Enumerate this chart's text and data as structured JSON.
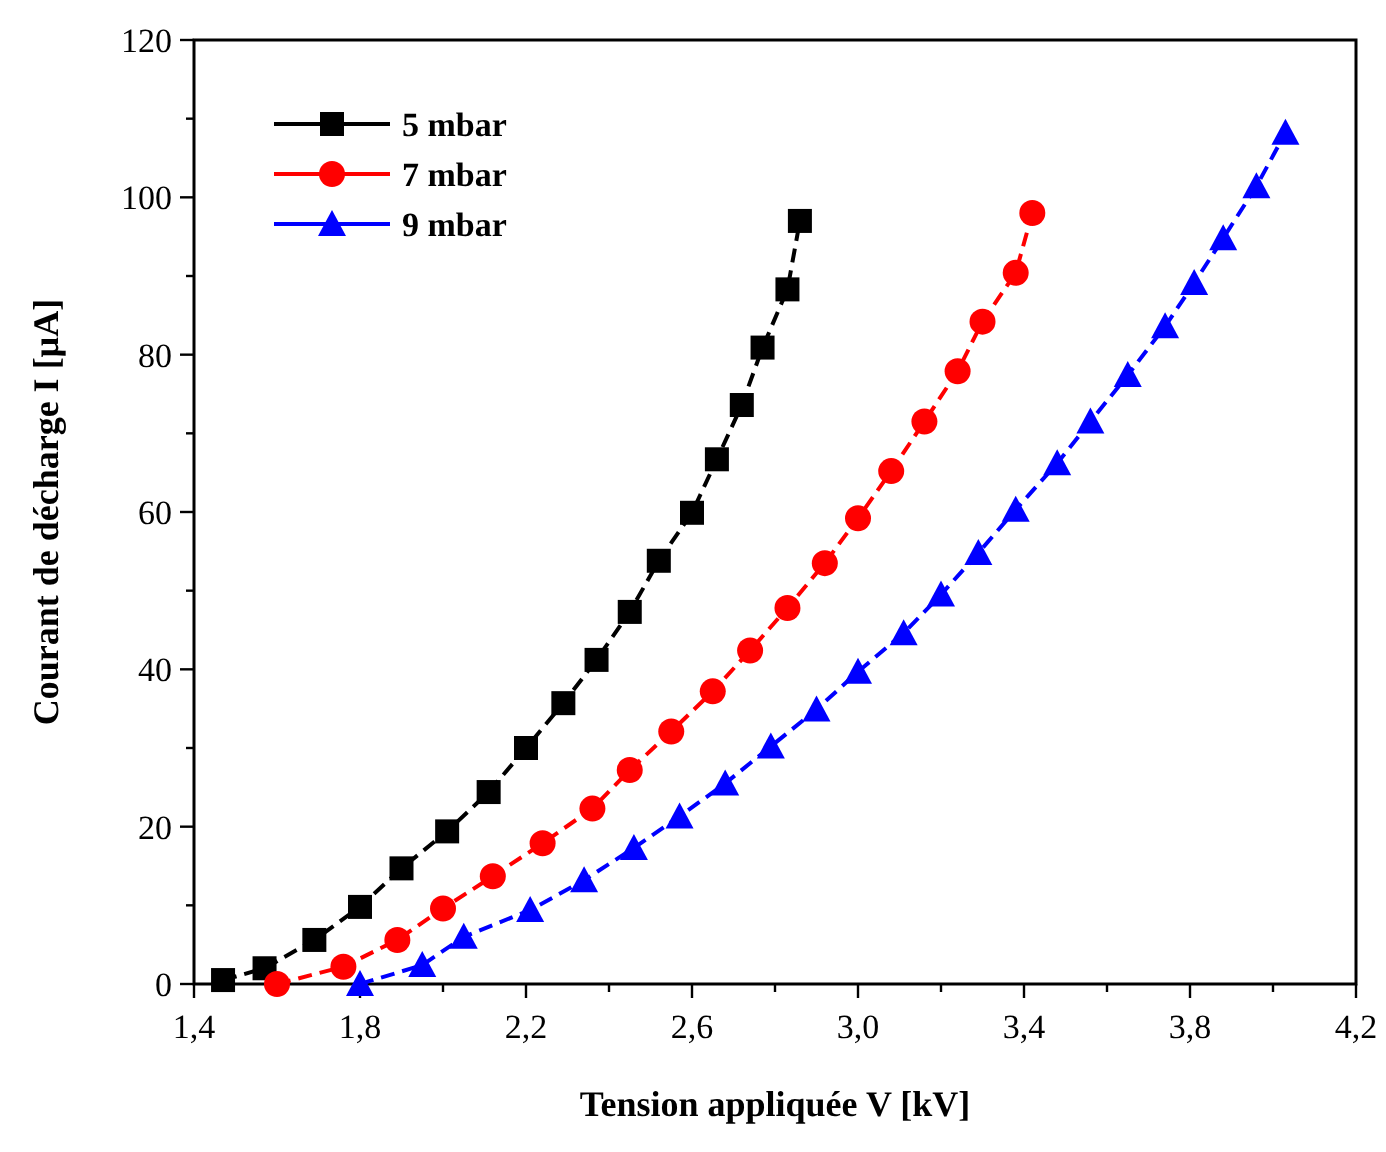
{
  "chart_data": {
    "type": "line",
    "xlabel": "Tension appliquée V [kV]",
    "ylabel": "Courant de décharge I [µA]",
    "xlim": [
      1.4,
      4.2
    ],
    "ylim": [
      0,
      120
    ],
    "xticks": [
      {
        "value": 1.4,
        "label": "1,4"
      },
      {
        "value": 1.6,
        "label": null
      },
      {
        "value": 1.8,
        "label": "1,8"
      },
      {
        "value": 2.0,
        "label": null
      },
      {
        "value": 2.2,
        "label": "2,2"
      },
      {
        "value": 2.4,
        "label": null
      },
      {
        "value": 2.6,
        "label": "2,6"
      },
      {
        "value": 2.8,
        "label": null
      },
      {
        "value": 3.0,
        "label": "3,0"
      },
      {
        "value": 3.2,
        "label": null
      },
      {
        "value": 3.4,
        "label": "3,4"
      },
      {
        "value": 3.6,
        "label": null
      },
      {
        "value": 3.8,
        "label": "3,8"
      },
      {
        "value": 4.0,
        "label": null
      },
      {
        "value": 4.2,
        "label": "4,2"
      }
    ],
    "yticks": [
      0,
      {
        "value": 10,
        "label": null
      },
      20,
      {
        "value": 30,
        "label": null
      },
      40,
      {
        "value": 50,
        "label": null
      },
      60,
      {
        "value": 70,
        "label": null
      },
      80,
      {
        "value": 90,
        "label": null
      },
      100,
      {
        "value": 110,
        "label": null
      },
      120
    ],
    "grid": false,
    "legend": "top left",
    "line_style": "dashed",
    "series": [
      {
        "name": "5 mbar",
        "color": "#000000",
        "marker": "square",
        "x": [
          1.47,
          1.57,
          1.69,
          1.8,
          1.9,
          2.01,
          2.11,
          2.2,
          2.29,
          2.37,
          2.45,
          2.52,
          2.6,
          2.66,
          2.72,
          2.77,
          2.83,
          2.86
        ],
        "values": [
          0.5,
          2,
          5.6,
          9.8,
          14.7,
          19.4,
          24.4,
          30,
          35.7,
          41.2,
          47.3,
          53.8,
          59.9,
          66.7,
          73.6,
          80.9,
          88.3,
          97
        ]
      },
      {
        "name": "7 mbar",
        "color": "#ff0000",
        "marker": "circle",
        "x": [
          1.6,
          1.76,
          1.89,
          2.0,
          2.12,
          2.24,
          2.36,
          2.45,
          2.55,
          2.65,
          2.74,
          2.83,
          2.92,
          3.0,
          3.08,
          3.16,
          3.24,
          3.3,
          3.38,
          3.42
        ],
        "values": [
          0,
          2.2,
          5.6,
          9.6,
          13.7,
          17.9,
          22.3,
          27.2,
          32.1,
          37.2,
          42.4,
          47.8,
          53.5,
          59.2,
          65.2,
          71.5,
          77.9,
          84.2,
          90.4,
          98
        ]
      },
      {
        "name": "9 mbar",
        "color": "#0000ff",
        "marker": "triangle",
        "x": [
          1.8,
          1.95,
          2.05,
          2.21,
          2.34,
          2.46,
          2.57,
          2.68,
          2.79,
          2.9,
          3.0,
          3.11,
          3.2,
          3.29,
          3.38,
          3.48,
          3.56,
          3.65,
          3.74,
          3.81,
          3.88,
          3.96,
          4.03
        ],
        "values": [
          0,
          2.4,
          6,
          9.4,
          13.2,
          17.3,
          21.3,
          25.5,
          30.2,
          34.9,
          39.7,
          44.6,
          49.5,
          54.8,
          60.3,
          66.2,
          71.5,
          77.4,
          83.6,
          89.1,
          94.8,
          101.4,
          108.2
        ]
      }
    ]
  }
}
